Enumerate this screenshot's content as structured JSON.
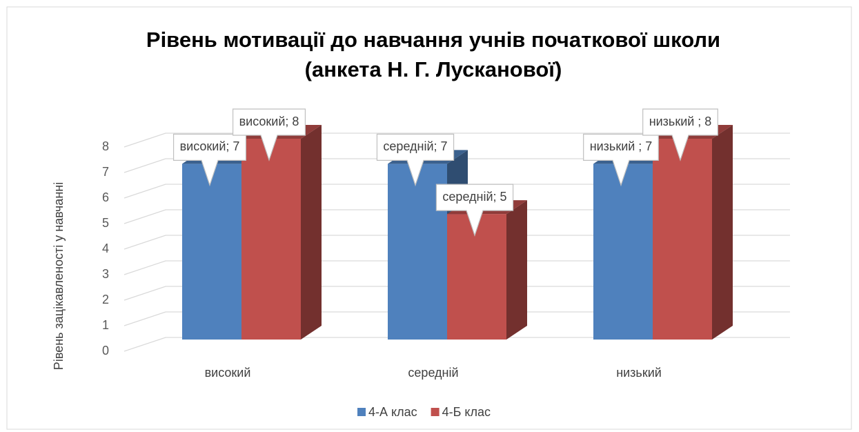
{
  "chart_data": {
    "type": "bar3d",
    "title": [
      "Рівень мотивації до навчання учнів початкової школи",
      "(анкета Н. Г. Лусканової)"
    ],
    "y_label": "Рівень зацікавленості у навчанні",
    "categories": [
      "високий",
      "середній",
      "низький"
    ],
    "series": [
      {
        "name": "4-А клас",
        "color": "#4f81bd",
        "values": [
          7,
          7,
          7
        ],
        "value_labels": [
          "високий; 7",
          "середній; 7",
          "низький ; 7"
        ]
      },
      {
        "name": "4-Б клас",
        "color": "#c0504d",
        "values": [
          8,
          5,
          8
        ],
        "value_labels": [
          "високий; 8",
          "середній; 5",
          "низький ; 8"
        ]
      }
    ],
    "ylim": [
      0,
      8
    ],
    "yticks": [
      0,
      1,
      2,
      3,
      4,
      5,
      6,
      7,
      8
    ],
    "grid": true,
    "legend": "bottom"
  }
}
